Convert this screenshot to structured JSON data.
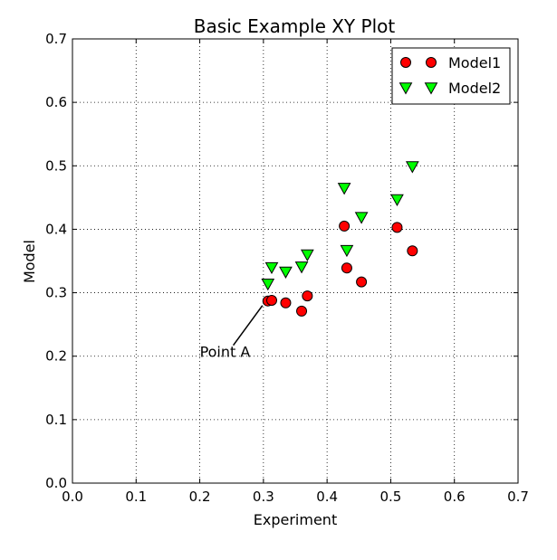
{
  "chart_data": {
    "type": "scatter",
    "title": "Basic Example XY Plot",
    "xlabel": "Experiment",
    "ylabel": "Model",
    "xlim": [
      0.0,
      0.7
    ],
    "ylim": [
      0.0,
      0.7
    ],
    "xticks": [
      "0.0",
      "0.1",
      "0.2",
      "0.3",
      "0.4",
      "0.5",
      "0.6",
      "0.7"
    ],
    "yticks": [
      "0.0",
      "0.1",
      "0.2",
      "0.3",
      "0.4",
      "0.5",
      "0.6",
      "0.7"
    ],
    "grid": true,
    "legend_position": "top-right",
    "series": [
      {
        "name": "Model1",
        "marker": "circle",
        "color": "#ff0000",
        "points": [
          {
            "x": 0.307,
            "y": 0.287
          },
          {
            "x": 0.313,
            "y": 0.288
          },
          {
            "x": 0.335,
            "y": 0.284
          },
          {
            "x": 0.36,
            "y": 0.271
          },
          {
            "x": 0.369,
            "y": 0.295
          },
          {
            "x": 0.427,
            "y": 0.405
          },
          {
            "x": 0.431,
            "y": 0.339
          },
          {
            "x": 0.454,
            "y": 0.317
          },
          {
            "x": 0.51,
            "y": 0.403
          },
          {
            "x": 0.534,
            "y": 0.366
          }
        ]
      },
      {
        "name": "Model2",
        "marker": "triangle-down",
        "color": "#00ff00",
        "points": [
          {
            "x": 0.307,
            "y": 0.314
          },
          {
            "x": 0.313,
            "y": 0.34
          },
          {
            "x": 0.335,
            "y": 0.333
          },
          {
            "x": 0.36,
            "y": 0.341
          },
          {
            "x": 0.369,
            "y": 0.36
          },
          {
            "x": 0.427,
            "y": 0.465
          },
          {
            "x": 0.431,
            "y": 0.367
          },
          {
            "x": 0.454,
            "y": 0.419
          },
          {
            "x": 0.51,
            "y": 0.447
          },
          {
            "x": 0.534,
            "y": 0.499
          }
        ]
      }
    ],
    "annotations": [
      {
        "text": "Point A",
        "x": 0.307,
        "y": 0.287,
        "text_x": 0.2,
        "text_y": 0.2
      }
    ]
  }
}
